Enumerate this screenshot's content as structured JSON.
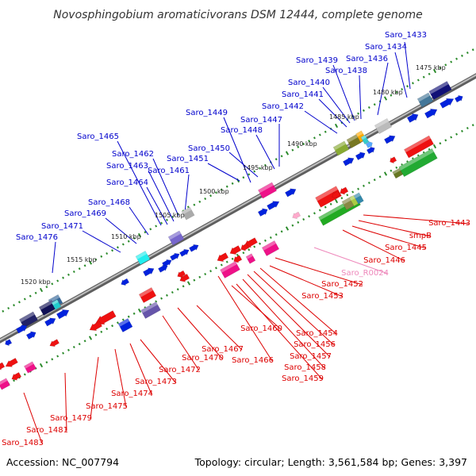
{
  "title": "Novosphingobium aromaticivorans DSM 12444, complete genome",
  "footer": {
    "accession": "Accession: NC_007794",
    "summary": "Topology: circular; Length: 3,561,584 bp; Genes: 3,397"
  },
  "colors": {
    "top_label": "#0000cc",
    "bottom_label": "#dd0000",
    "rna_label": "#ee88bb",
    "scale_dot": "#2a8a2a",
    "backbone": "#777777"
  },
  "kbp_marks": [
    {
      "label": "1475 kbp",
      "pos": 0
    },
    {
      "label": "1480 kbp",
      "pos": 1
    },
    {
      "label": "1485 kbp",
      "pos": 2
    },
    {
      "label": "1490 kbp",
      "pos": 3
    },
    {
      "label": "1495 kbp",
      "pos": 4
    },
    {
      "label": "1500 kbp",
      "pos": 5
    },
    {
      "label": "1505 kbp",
      "pos": 6
    },
    {
      "label": "1510 kbp",
      "pos": 7
    },
    {
      "label": "1515 kbp",
      "pos": 8
    },
    {
      "label": "1520 kbp",
      "pos": 9
    }
  ],
  "top_labels": [
    "Saro_1433",
    "Saro_1434",
    "Saro_1436",
    "Saro_1438",
    "Saro_1439",
    "Saro_1440",
    "Saro_1441",
    "Saro_1442",
    "Saro_1447",
    "Saro_1448",
    "Saro_1449",
    "Saro_1450",
    "Saro_1451",
    "Saro_1461",
    "Saro_1462",
    "Saro_1463",
    "Saro_1464",
    "Saro_1465",
    "Saro_1468",
    "Saro_1469",
    "Saro_1471",
    "Saro_1476"
  ],
  "bottom_labels": [
    "Saro_1443",
    "smpB",
    "Saro_1445",
    "Saro_1446",
    "Saro_R0024",
    "Saro_1452",
    "Saro_1453",
    "Saro_1454",
    "Saro_1456",
    "Saro_1457",
    "Saro_1458",
    "Saro_1459",
    "Saro_1460",
    "Saro_1466",
    "Saro_1467",
    "Saro_1470",
    "Saro_1472",
    "Saro_1473",
    "Saro_1474",
    "Saro_1475",
    "Saro_1479",
    "Saro_1481",
    "Saro_1483"
  ]
}
